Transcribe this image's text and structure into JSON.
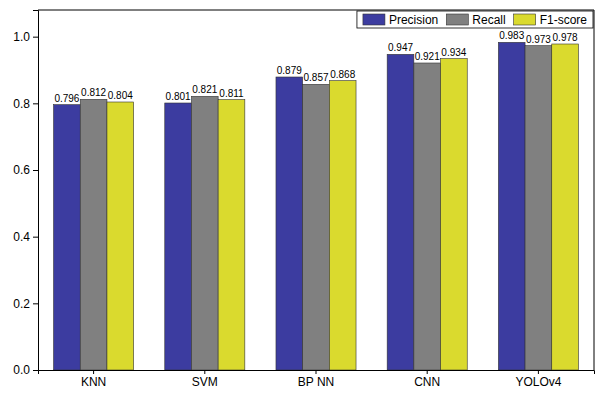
{
  "chart_data": {
    "type": "bar",
    "categories": [
      "KNN",
      "SVM",
      "BP NN",
      "CNN",
      "YOLOv4"
    ],
    "series": [
      {
        "name": "Precision",
        "color": "#3c3ca0",
        "values": [
          0.796,
          0.801,
          0.879,
          0.947,
          0.983
        ]
      },
      {
        "name": "Recall",
        "color": "#808080",
        "values": [
          0.812,
          0.821,
          0.857,
          0.921,
          0.973
        ]
      },
      {
        "name": "F1-score",
        "color": "#dada2e",
        "values": [
          0.804,
          0.811,
          0.868,
          0.934,
          0.978
        ]
      }
    ],
    "ylim": [
      0,
      1.08
    ],
    "yticks": [
      {
        "value": 0,
        "label": "0.0"
      },
      0.2,
      0.4,
      0.6,
      0.8,
      {
        "value": 1,
        "label": "1.0"
      }
    ],
    "data_labels": true,
    "legend": "upper right",
    "grid": false
  }
}
